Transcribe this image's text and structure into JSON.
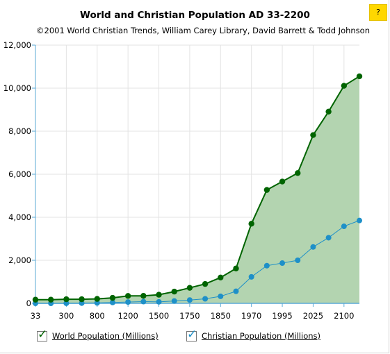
{
  "help": {
    "label": "?"
  },
  "chart_data": {
    "type": "area",
    "title": "World and Christian Population AD 33-2200",
    "subtitle": "©2001 World Christian Trends, William Carey Library, David Barrett & Todd Johnson",
    "x_tick_labels": [
      "33",
      "300",
      "800",
      "1200",
      "1500",
      "1750",
      "1850",
      "1970",
      "1995",
      "2025",
      "2100"
    ],
    "y_tick_labels": [
      "0",
      "2,000",
      "4,000",
      "6,000",
      "8,000",
      "10,000",
      "12,000"
    ],
    "ylim": [
      0,
      12000
    ],
    "grid": true,
    "legend_position": "bottom-left",
    "colors": {
      "world_line": "#006400",
      "world_fill": "#b3d4b0",
      "christian_line": "#1e90c8",
      "axis": "#5aa9d6",
      "grid": "#e3e3e3"
    },
    "series": [
      {
        "name": "World Population (Millions)",
        "key": "world",
        "values": [
          169,
          169,
          190,
          190,
          206,
          254,
          345,
          348,
          400,
          545,
          720,
          900,
          1200,
          1620,
          3700,
          5270,
          5660,
          6055,
          7820,
          8910,
          10110,
          10550
        ]
      },
      {
        "name": "Christian Population (Millions)",
        "key": "christian",
        "values": [
          0,
          0,
          2,
          10,
          20,
          40,
          60,
          80,
          70,
          110,
          155,
          210,
          325,
          560,
          1230,
          1750,
          1870,
          2000,
          2620,
          3050,
          3580,
          3850
        ]
      }
    ]
  }
}
